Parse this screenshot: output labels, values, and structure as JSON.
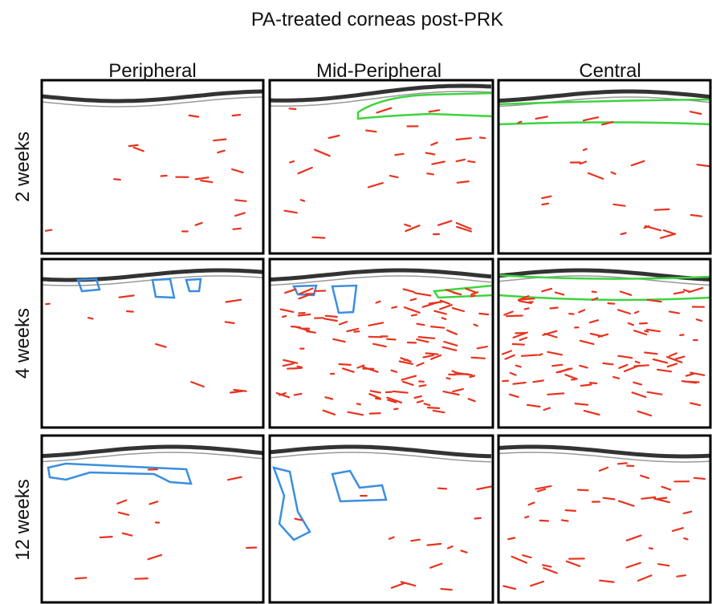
{
  "header": {
    "title": "PA-treated corneas post-PRK"
  },
  "columns": [
    "Peripheral",
    "Mid-Peripheral",
    "Central"
  ],
  "rows": [
    "2 weeks",
    "4 weeks",
    "12 weeks"
  ]
}
